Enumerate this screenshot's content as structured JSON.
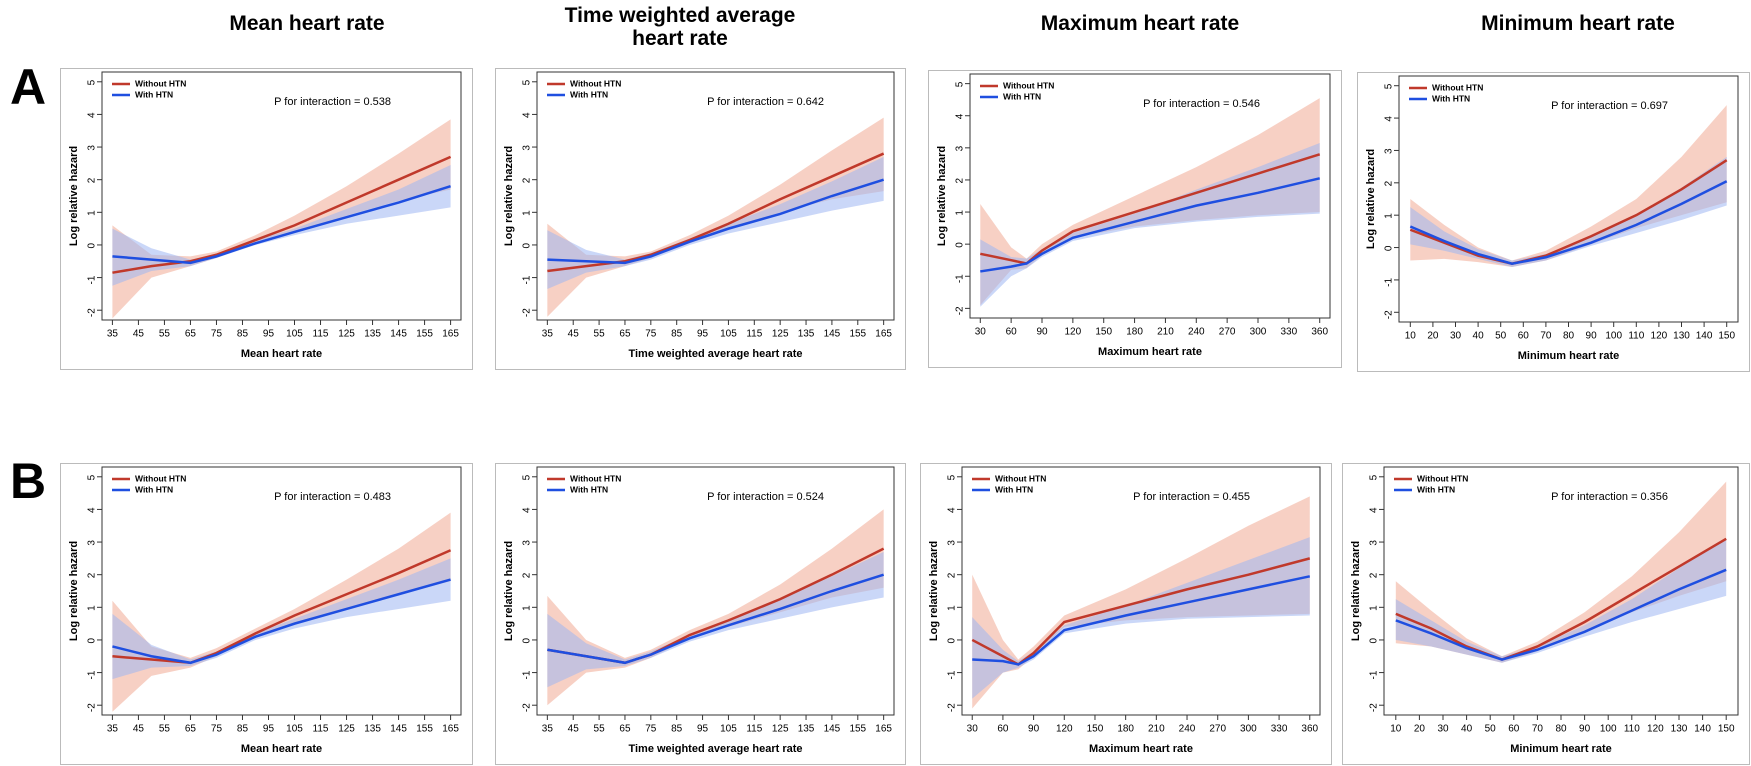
{
  "column_titles": [
    "Mean heart rate",
    "Time weighted average heart rate",
    "Maximum heart rate",
    "Minimum heart rate"
  ],
  "row_labels": [
    "A",
    "B"
  ],
  "chart_data": [
    {
      "type": "line",
      "xlabel": "Mean heart rate",
      "ylabel": "Log relative hazard",
      "annotation": "P for interaction = 0.538",
      "xlim": [
        31,
        169
      ],
      "ylim": [
        -2.3,
        5.3
      ],
      "xticks": [
        35,
        45,
        55,
        65,
        75,
        85,
        95,
        105,
        115,
        125,
        135,
        145,
        155,
        165
      ],
      "yticks": [
        -2,
        -1,
        0,
        1,
        2,
        3,
        4,
        5
      ],
      "x": [
        35,
        50,
        65,
        75,
        90,
        105,
        125,
        145,
        165
      ],
      "series": [
        {
          "name": "Without HTN",
          "color": "#c0392b",
          "band_color": "#f0a993",
          "values": [
            -0.85,
            -0.65,
            -0.5,
            -0.3,
            0.15,
            0.6,
            1.3,
            2.0,
            2.7
          ],
          "lower": [
            -2.25,
            -1.0,
            -0.65,
            -0.4,
            0.05,
            0.4,
            0.9,
            1.35,
            1.7
          ],
          "upper": [
            0.6,
            -0.3,
            -0.35,
            -0.2,
            0.3,
            0.9,
            1.8,
            2.8,
            3.85
          ]
        },
        {
          "name": "With HTN",
          "color": "#1f4fe0",
          "band_color": "#9fb6f2",
          "values": [
            -0.35,
            -0.45,
            -0.55,
            -0.35,
            0.05,
            0.4,
            0.85,
            1.3,
            1.8
          ],
          "lower": [
            -1.25,
            -0.8,
            -0.65,
            -0.4,
            0,
            0.3,
            0.65,
            0.9,
            1.15
          ],
          "upper": [
            0.5,
            -0.1,
            -0.45,
            -0.3,
            0.15,
            0.5,
            1.1,
            1.7,
            2.45
          ]
        }
      ]
    },
    {
      "type": "line",
      "xlabel": "Time weighted average heart rate",
      "ylabel": "Log relative hazard",
      "annotation": "P for interaction = 0.642",
      "xlim": [
        31,
        169
      ],
      "ylim": [
        -2.3,
        5.3
      ],
      "xticks": [
        35,
        45,
        55,
        65,
        75,
        85,
        95,
        105,
        115,
        125,
        135,
        145,
        155,
        165
      ],
      "yticks": [
        -2,
        -1,
        0,
        1,
        2,
        3,
        4,
        5
      ],
      "x": [
        35,
        50,
        65,
        75,
        90,
        105,
        125,
        145,
        165
      ],
      "series": [
        {
          "name": "Without HTN",
          "color": "#c0392b",
          "band_color": "#f0a993",
          "values": [
            -0.8,
            -0.65,
            -0.5,
            -0.3,
            0.15,
            0.65,
            1.4,
            2.1,
            2.8
          ],
          "lower": [
            -2.2,
            -1.0,
            -0.65,
            -0.4,
            0.05,
            0.45,
            1.0,
            1.4,
            1.65
          ],
          "upper": [
            0.65,
            -0.3,
            -0.35,
            -0.2,
            0.3,
            0.9,
            1.85,
            2.9,
            3.9
          ]
        },
        {
          "name": "With HTN",
          "color": "#1f4fe0",
          "band_color": "#9fb6f2",
          "values": [
            -0.45,
            -0.5,
            -0.55,
            -0.35,
            0.1,
            0.5,
            0.95,
            1.5,
            2.0
          ],
          "lower": [
            -1.35,
            -0.85,
            -0.65,
            -0.45,
            0,
            0.35,
            0.7,
            1.05,
            1.35
          ],
          "upper": [
            0.45,
            -0.15,
            -0.45,
            -0.25,
            0.2,
            0.65,
            1.25,
            1.95,
            2.7
          ]
        }
      ]
    },
    {
      "type": "line",
      "xlabel": "Maximum heart rate",
      "ylabel": "Log relative hazard",
      "annotation": "P for interaction = 0.546",
      "xlim": [
        20,
        370
      ],
      "ylim": [
        -2.3,
        5.3
      ],
      "xticks": [
        30,
        60,
        90,
        120,
        150,
        180,
        210,
        240,
        270,
        300,
        330,
        360
      ],
      "yticks": [
        -2,
        -1,
        0,
        1,
        2,
        3,
        4,
        5
      ],
      "x": [
        30,
        60,
        75,
        90,
        120,
        180,
        240,
        300,
        360
      ],
      "series": [
        {
          "name": "Without HTN",
          "color": "#c0392b",
          "band_color": "#f0a993",
          "values": [
            -0.3,
            -0.5,
            -0.6,
            -0.2,
            0.4,
            1.0,
            1.6,
            2.2,
            2.8
          ],
          "lower": [
            -1.9,
            -0.8,
            -0.75,
            -0.35,
            0.2,
            0.55,
            0.75,
            0.9,
            1.0
          ],
          "upper": [
            1.25,
            -0.1,
            -0.45,
            0,
            0.6,
            1.5,
            2.4,
            3.4,
            4.55
          ]
        },
        {
          "name": "With HTN",
          "color": "#1f4fe0",
          "band_color": "#9fb6f2",
          "values": [
            -0.85,
            -0.7,
            -0.6,
            -0.3,
            0.2,
            0.7,
            1.2,
            1.6,
            2.05
          ],
          "lower": [
            -1.95,
            -1.0,
            -0.75,
            -0.4,
            0.1,
            0.5,
            0.7,
            0.85,
            0.95
          ],
          "upper": [
            0.15,
            -0.4,
            -0.45,
            -0.15,
            0.35,
            0.95,
            1.7,
            2.4,
            3.15
          ]
        }
      ]
    },
    {
      "type": "line",
      "xlabel": "Minimum heart rate",
      "ylabel": "Log relative hazard",
      "annotation": "P for interaction = 0.697",
      "xlim": [
        5,
        155
      ],
      "ylim": [
        -2.3,
        5.3
      ],
      "xticks": [
        10,
        20,
        30,
        40,
        50,
        60,
        70,
        80,
        90,
        100,
        110,
        120,
        130,
        140,
        150
      ],
      "yticks": [
        -2,
        -1,
        0,
        1,
        2,
        3,
        4,
        5
      ],
      "x": [
        10,
        25,
        40,
        55,
        70,
        90,
        110,
        130,
        150
      ],
      "series": [
        {
          "name": "Without HTN",
          "color": "#c0392b",
          "band_color": "#f0a993",
          "values": [
            0.55,
            0.15,
            -0.25,
            -0.5,
            -0.25,
            0.35,
            1.0,
            1.8,
            2.7
          ],
          "lower": [
            -0.4,
            -0.35,
            -0.45,
            -0.6,
            -0.4,
            0.1,
            0.6,
            1.0,
            1.4
          ],
          "upper": [
            1.5,
            0.7,
            0,
            -0.4,
            -0.1,
            0.65,
            1.5,
            2.8,
            4.4
          ]
        },
        {
          "name": "With HTN",
          "color": "#1f4fe0",
          "band_color": "#9fb6f2",
          "values": [
            0.65,
            0.2,
            -0.2,
            -0.5,
            -0.3,
            0.15,
            0.7,
            1.35,
            2.05
          ],
          "lower": [
            0.1,
            -0.1,
            -0.35,
            -0.6,
            -0.4,
            0.05,
            0.45,
            0.85,
            1.3
          ],
          "upper": [
            1.25,
            0.5,
            -0.05,
            -0.4,
            -0.2,
            0.35,
            0.95,
            1.85,
            2.8
          ]
        }
      ]
    },
    {
      "type": "line",
      "xlabel": "Mean heart rate",
      "ylabel": "Log relative hazard",
      "annotation": "P for interaction = 0.483",
      "xlim": [
        31,
        169
      ],
      "ylim": [
        -2.3,
        5.3
      ],
      "xticks": [
        35,
        45,
        55,
        65,
        75,
        85,
        95,
        105,
        115,
        125,
        135,
        145,
        155,
        165
      ],
      "yticks": [
        -2,
        -1,
        0,
        1,
        2,
        3,
        4,
        5
      ],
      "x": [
        35,
        50,
        65,
        75,
        90,
        105,
        125,
        145,
        165
      ],
      "series": [
        {
          "name": "Without HTN",
          "color": "#c0392b",
          "band_color": "#f0a993",
          "values": [
            -0.5,
            -0.6,
            -0.7,
            -0.4,
            0.2,
            0.75,
            1.4,
            2.05,
            2.75
          ],
          "lower": [
            -2.2,
            -1.1,
            -0.85,
            -0.5,
            0.1,
            0.5,
            0.95,
            1.4,
            1.8
          ],
          "upper": [
            1.2,
            -0.2,
            -0.55,
            -0.25,
            0.35,
            0.95,
            1.85,
            2.8,
            3.9
          ]
        },
        {
          "name": "With HTN",
          "color": "#1f4fe0",
          "band_color": "#9fb6f2",
          "values": [
            -0.2,
            -0.5,
            -0.7,
            -0.45,
            0.1,
            0.5,
            0.95,
            1.4,
            1.85
          ],
          "lower": [
            -1.2,
            -0.85,
            -0.8,
            -0.55,
            0,
            0.35,
            0.7,
            0.95,
            1.2
          ],
          "upper": [
            0.8,
            -0.15,
            -0.6,
            -0.35,
            0.2,
            0.65,
            1.25,
            1.85,
            2.5
          ]
        }
      ]
    },
    {
      "type": "line",
      "xlabel": "Time weighted average heart rate",
      "ylabel": "Log relative hazard",
      "annotation": "P for interaction = 0.524",
      "xlim": [
        31,
        169
      ],
      "ylim": [
        -2.3,
        5.3
      ],
      "xticks": [
        35,
        45,
        55,
        65,
        75,
        85,
        95,
        105,
        115,
        125,
        135,
        145,
        155,
        165
      ],
      "yticks": [
        -2,
        -1,
        0,
        1,
        2,
        3,
        4,
        5
      ],
      "x": [
        35,
        50,
        65,
        75,
        90,
        105,
        125,
        145,
        165
      ],
      "series": [
        {
          "name": "Without HTN",
          "color": "#c0392b",
          "band_color": "#f0a993",
          "values": [
            -0.3,
            -0.5,
            -0.7,
            -0.45,
            0.15,
            0.6,
            1.25,
            2.0,
            2.8
          ],
          "lower": [
            -2.0,
            -1.0,
            -0.85,
            -0.55,
            0.05,
            0.4,
            0.85,
            1.3,
            1.6
          ],
          "upper": [
            1.35,
            0,
            -0.55,
            -0.3,
            0.3,
            0.8,
            1.7,
            2.8,
            4.0
          ]
        },
        {
          "name": "With HTN",
          "color": "#1f4fe0",
          "band_color": "#9fb6f2",
          "values": [
            -0.3,
            -0.5,
            -0.7,
            -0.45,
            0.05,
            0.45,
            0.95,
            1.5,
            2.0
          ],
          "lower": [
            -1.45,
            -0.9,
            -0.8,
            -0.55,
            -0.05,
            0.3,
            0.65,
            1.0,
            1.3
          ],
          "upper": [
            0.8,
            -0.1,
            -0.6,
            -0.35,
            0.15,
            0.6,
            1.25,
            1.95,
            2.7
          ]
        }
      ]
    },
    {
      "type": "line",
      "xlabel": "Maximum heart rate",
      "ylabel": "Log relative hazard",
      "annotation": "P for interaction = 0.455",
      "xlim": [
        20,
        370
      ],
      "ylim": [
        -2.3,
        5.3
      ],
      "xticks": [
        30,
        60,
        90,
        120,
        150,
        180,
        210,
        240,
        270,
        300,
        330,
        360
      ],
      "yticks": [
        -2,
        -1,
        0,
        1,
        2,
        3,
        4,
        5
      ],
      "x": [
        30,
        60,
        75,
        90,
        120,
        180,
        240,
        300,
        360
      ],
      "series": [
        {
          "name": "Without HTN",
          "color": "#c0392b",
          "band_color": "#f0a993",
          "values": [
            0,
            -0.5,
            -0.75,
            -0.4,
            0.55,
            1.05,
            1.55,
            2.0,
            2.5
          ],
          "lower": [
            -2.1,
            -1.0,
            -0.9,
            -0.5,
            0.4,
            0.6,
            0.7,
            0.75,
            0.8
          ],
          "upper": [
            2.0,
            0,
            -0.6,
            -0.2,
            0.75,
            1.55,
            2.5,
            3.5,
            4.4
          ]
        },
        {
          "name": "With HTN",
          "color": "#1f4fe0",
          "band_color": "#9fb6f2",
          "values": [
            -0.6,
            -0.65,
            -0.75,
            -0.5,
            0.3,
            0.75,
            1.15,
            1.55,
            1.95
          ],
          "lower": [
            -1.8,
            -1.0,
            -0.85,
            -0.6,
            0.2,
            0.5,
            0.65,
            0.7,
            0.75
          ],
          "upper": [
            0.7,
            -0.3,
            -0.65,
            -0.35,
            0.45,
            1.05,
            1.75,
            2.45,
            3.15
          ]
        }
      ]
    },
    {
      "type": "line",
      "xlabel": "Minimum heart rate",
      "ylabel": "Log relative hazard",
      "annotation": "P for interaction = 0.356",
      "xlim": [
        5,
        155
      ],
      "ylim": [
        -2.3,
        5.3
      ],
      "xticks": [
        10,
        20,
        30,
        40,
        50,
        60,
        70,
        80,
        90,
        100,
        110,
        120,
        130,
        140,
        150
      ],
      "yticks": [
        -2,
        -1,
        0,
        1,
        2,
        3,
        4,
        5
      ],
      "x": [
        10,
        25,
        40,
        55,
        70,
        90,
        110,
        130,
        150
      ],
      "series": [
        {
          "name": "Without HTN",
          "color": "#c0392b",
          "band_color": "#f0a993",
          "values": [
            0.8,
            0.35,
            -0.2,
            -0.6,
            -0.2,
            0.55,
            1.4,
            2.25,
            3.1
          ],
          "lower": [
            -0.1,
            -0.2,
            -0.45,
            -0.7,
            -0.35,
            0.3,
            0.85,
            1.35,
            1.8
          ],
          "upper": [
            1.8,
            0.9,
            0.05,
            -0.5,
            -0.05,
            0.85,
            1.95,
            3.3,
            4.85
          ]
        },
        {
          "name": "With HTN",
          "color": "#1f4fe0",
          "band_color": "#9fb6f2",
          "values": [
            0.6,
            0.2,
            -0.25,
            -0.6,
            -0.3,
            0.25,
            0.9,
            1.55,
            2.15
          ],
          "lower": [
            0,
            -0.2,
            -0.45,
            -0.7,
            -0.4,
            0.1,
            0.55,
            0.95,
            1.35
          ],
          "upper": [
            1.25,
            0.6,
            -0.05,
            -0.5,
            -0.2,
            0.45,
            1.25,
            2.2,
            3.1
          ]
        }
      ]
    }
  ]
}
